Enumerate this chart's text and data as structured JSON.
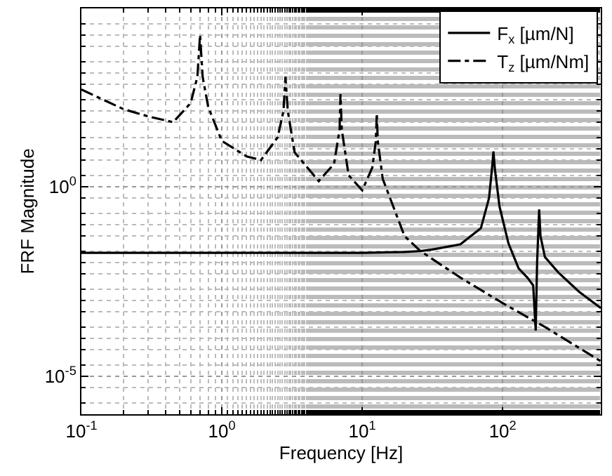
{
  "chart_data": {
    "type": "line",
    "xlabel": "Frequency [Hz]",
    "ylabel": "FRF Magnitude",
    "log": "xy",
    "grid": true,
    "legend": "top right",
    "marker": "none",
    "xlim": [
      0.1,
      500
    ],
    "xticks": [
      {
        "value": 0.1,
        "label": "10$^{-1}$"
      },
      {
        "value": 1,
        "label": "10$^{0}$"
      },
      {
        "value": 10,
        "label": "10$^{1}$"
      },
      {
        "value": 100,
        "label": "10$^{2}$"
      }
    ],
    "ylim": [
      1e-06,
      50000
    ],
    "yticks": [
      {
        "value": 1e-05,
        "label": "10$^{-5}$"
      },
      {
        "value": 1,
        "label": "10$^{0}$"
      }
    ],
    "series": [
      {
        "name": "F$_{x}$ [µm/N]",
        "color": "#000000",
        "line_style": "solid",
        "x": [
          0.1,
          10,
          20,
          26,
          31.6,
          50,
          70,
          80,
          84,
          86,
          88,
          95,
          110,
          130,
          150,
          165,
          172,
          176,
          182,
          186,
          200,
          250,
          350,
          500
        ],
        "values": [
          0.018,
          0.018,
          0.019,
          0.02,
          0.022,
          0.03,
          0.08,
          0.5,
          3,
          8.5,
          3,
          0.3,
          0.032,
          0.007,
          0.004,
          0.0025,
          0.00016,
          0.01,
          0.25,
          0.05,
          0.014,
          0.0054,
          0.0017,
          0.00063
        ]
      },
      {
        "name": "T$_{z}$ [µm/Nm]",
        "color": "#000000",
        "line_style": "dashed",
        "x": [
          0.1,
          0.2,
          0.3,
          0.45,
          0.6,
          0.67,
          0.7,
          0.73,
          0.8,
          1,
          1.5,
          1.9,
          2.5,
          2.75,
          2.84,
          2.95,
          3.3,
          4.9,
          6.3,
          6.9,
          7,
          7.15,
          8,
          10,
          11.8,
          12.5,
          12.7,
          12.9,
          14,
          20,
          26,
          50,
          100,
          200,
          500
        ],
        "values": [
          363,
          110,
          71,
          50,
          160,
          790,
          10000,
          790,
          126,
          16,
          6.3,
          5,
          20,
          100,
          790,
          100,
          8,
          1.4,
          4,
          32,
          275,
          32,
          2,
          0.8,
          3.2,
          16,
          85,
          16,
          1.6,
          0.05,
          0.02,
          0.004,
          0.00085,
          0.0002,
          2.5e-05
        ]
      }
    ]
  }
}
